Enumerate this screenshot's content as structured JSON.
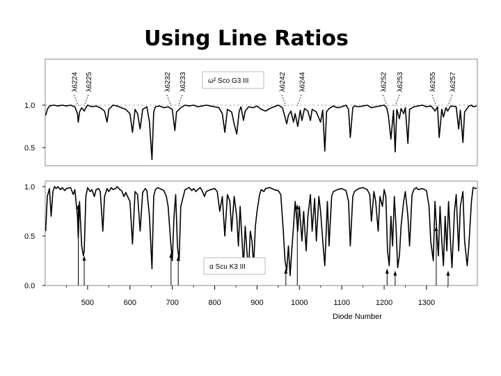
{
  "slide": {
    "title": "Using Line Ratios"
  },
  "chart_data": {
    "type": "line",
    "xlabel": "Diode Number",
    "x_ticks": [
      500,
      600,
      700,
      800,
      900,
      1000,
      1100,
      1200,
      1300
    ],
    "x_range": [
      400,
      1420
    ],
    "line_labels": [
      {
        "text": "λ6224",
        "diode": 478,
        "arrow_top": 0.82,
        "arrow_bottom": 0.0
      },
      {
        "text": "λ6225",
        "diode": 492,
        "arrow_top": 0.3,
        "arrow_bottom": 0.0
      },
      {
        "text": "λ6232",
        "diode": 697,
        "arrow_top": 0.33,
        "arrow_bottom": 0.0
      },
      {
        "text": "λ6233",
        "diode": 714,
        "arrow_top": 0.3,
        "arrow_bottom": 0.0
      },
      {
        "text": "λ6242",
        "diode": 968,
        "arrow_top": 0.17,
        "arrow_bottom": 0.0
      },
      {
        "text": "λ6244",
        "diode": 995,
        "arrow_top": 0.82,
        "arrow_bottom": 0.0
      },
      {
        "text": "λ6252",
        "diode": 1207,
        "arrow_top": 0.17,
        "arrow_bottom": 0.0
      },
      {
        "text": "λ6253",
        "diode": 1226,
        "arrow_top": 0.15,
        "arrow_bottom": 0.0
      },
      {
        "text": "λ6255",
        "diode": 1323,
        "arrow_top": 0.6,
        "arrow_bottom": 0.0
      },
      {
        "text": "λ6257",
        "diode": 1351,
        "arrow_top": 0.15,
        "arrow_bottom": 0.0
      }
    ],
    "panels": [
      {
        "star": "ω² Sco G3 III",
        "y_ticks": [
          1.0,
          0.5
        ],
        "ylim": [
          0.35,
          1.35
        ],
        "continuum": 1.0,
        "series": [
          {
            "x": [
              401,
              405,
              410,
              420,
              430,
              440,
              450,
              460,
              470,
              476,
              478,
              481,
              486,
              492,
              496,
              500,
              510,
              520,
              530,
              540,
              546,
              550,
              556,
              560,
              570,
              580,
              590,
              600,
              606,
              612,
              618,
              624,
              630,
              640,
              646,
              652,
              656,
              660,
              670,
              680,
              690,
              700,
              706,
              710,
              720,
              730,
              740,
              750,
              760,
              770,
              780,
              790,
              800,
              810,
              818,
              824,
              830,
              840,
              846,
              852,
              858,
              862,
              868,
              872,
              880,
              890,
              900,
              910,
              920,
              930,
              940,
              950,
              960,
              966,
              970,
              974,
              980,
              986,
              990,
              996,
              1002,
              1006,
              1012,
              1020,
              1026,
              1030,
              1040,
              1050,
              1055,
              1060,
              1064,
              1070,
              1080,
              1090,
              1100,
              1110,
              1116,
              1120,
              1126,
              1130,
              1140,
              1150,
              1160,
              1170,
              1180,
              1190,
              1200,
              1206,
              1210,
              1216,
              1222,
              1226,
              1230,
              1236,
              1240,
              1246,
              1250,
              1256,
              1260,
              1270,
              1280,
              1290,
              1300,
              1310,
              1316,
              1320,
              1326,
              1330,
              1336,
              1340,
              1346,
              1350,
              1356,
              1360,
              1370,
              1376,
              1380,
              1386,
              1390,
              1400,
              1406,
              1410,
              1418
            ],
            "y": [
              0.88,
              0.95,
              0.99,
              1.0,
              0.99,
              1.0,
              0.99,
              1.0,
              0.98,
              0.9,
              0.8,
              0.92,
              0.97,
              0.93,
              0.97,
              1.0,
              0.98,
              0.99,
              0.97,
              0.93,
              0.8,
              0.95,
              0.98,
              1.0,
              0.99,
              0.97,
              0.95,
              0.9,
              0.68,
              0.95,
              0.9,
              0.72,
              0.95,
              0.98,
              0.8,
              0.36,
              0.92,
              0.98,
              0.99,
              0.97,
              0.98,
              0.95,
              0.7,
              0.92,
              0.97,
              1.0,
              0.99,
              1.0,
              0.98,
              0.99,
              1.0,
              0.99,
              0.98,
              0.97,
              0.9,
              0.68,
              0.95,
              0.92,
              0.78,
              0.66,
              0.93,
              0.98,
              0.82,
              0.93,
              0.98,
              0.97,
              0.99,
              0.95,
              0.93,
              0.96,
              0.98,
              1.0,
              0.97,
              0.86,
              0.78,
              0.88,
              0.93,
              0.8,
              0.9,
              0.75,
              0.94,
              0.82,
              0.96,
              0.93,
              0.82,
              0.95,
              0.92,
              0.8,
              0.94,
              0.46,
              0.92,
              0.96,
              0.99,
              0.97,
              0.98,
              1.0,
              0.95,
              0.62,
              0.97,
              0.99,
              0.98,
              0.99,
              1.0,
              0.97,
              0.98,
              0.99,
              1.0,
              0.97,
              0.88,
              0.6,
              0.94,
              0.45,
              0.95,
              0.84,
              0.96,
              0.9,
              0.97,
              0.55,
              0.95,
              0.98,
              0.99,
              1.0,
              0.98,
              0.99,
              0.96,
              0.93,
              0.98,
              0.62,
              0.95,
              0.86,
              0.97,
              0.93,
              0.98,
              0.99,
              0.98,
              0.72,
              0.94,
              0.56,
              0.92,
              0.99,
              1.0,
              0.98,
              0.99
            ]
          }
        ]
      },
      {
        "star": "α Scu K3 III",
        "y_ticks": [
          1.0,
          0.5,
          0.0
        ],
        "ylim": [
          -0.02,
          1.05
        ],
        "continuum": null,
        "series": [
          {
            "x": [
              401,
              405,
              410,
              414,
              418,
              422,
              426,
              430,
              436,
              440,
              446,
              450,
              460,
              466,
              470,
              476,
              478,
              481,
              486,
              490,
              492,
              496,
              500,
              506,
              510,
              516,
              520,
              526,
              530,
              536,
              540,
              546,
              550,
              556,
              560,
              566,
              570,
              576,
              580,
              586,
              590,
              600,
              606,
              612,
              618,
              624,
              630,
              636,
              640,
              646,
              652,
              656,
              660,
              666,
              670,
              676,
              680,
              686,
              690,
              696,
              700,
              704,
              708,
              712,
              716,
              720,
              730,
              740,
              746,
              750,
              756,
              760,
              766,
              770,
              776,
              780,
              790,
              800,
              806,
              812,
              818,
              824,
              830,
              836,
              840,
              846,
              852,
              856,
              860,
              864,
              868,
              872,
              876,
              880,
              884,
              888,
              892,
              896,
              900,
              906,
              910,
              916,
              920,
              930,
              940,
              950,
              956,
              962,
              966,
              970,
              974,
              978,
              982,
              986,
              990,
              996,
              1000,
              1006,
              1010,
              1016,
              1020,
              1026,
              1030,
              1036,
              1040,
              1046,
              1050,
              1056,
              1060,
              1066,
              1070,
              1076,
              1080,
              1090,
              1100,
              1110,
              1116,
              1120,
              1126,
              1130,
              1136,
              1140,
              1150,
              1160,
              1166,
              1170,
              1176,
              1180,
              1186,
              1190,
              1196,
              1200,
              1204,
              1208,
              1212,
              1216,
              1220,
              1224,
              1228,
              1232,
              1236,
              1240,
              1246,
              1250,
              1256,
              1260,
              1266,
              1270,
              1276,
              1280,
              1290,
              1300,
              1306,
              1310,
              1316,
              1320,
              1324,
              1328,
              1332,
              1336,
              1340,
              1344,
              1348,
              1352,
              1356,
              1360,
              1366,
              1370,
              1376,
              1380,
              1386,
              1390,
              1396,
              1400,
              1406,
              1410,
              1418
            ],
            "y": [
              0.55,
              0.9,
              0.98,
              0.7,
              0.95,
              1.0,
              0.98,
              1.0,
              0.97,
              0.99,
              0.96,
              0.98,
              0.99,
              0.92,
              0.97,
              0.7,
              0.48,
              0.85,
              0.4,
              0.3,
              0.35,
              0.9,
              0.99,
              0.95,
              0.97,
              0.9,
              0.97,
              0.98,
              0.95,
              0.55,
              0.9,
              0.98,
              0.95,
              0.99,
              0.97,
              0.98,
              1.0,
              0.97,
              0.96,
              0.9,
              0.94,
              0.85,
              0.42,
              0.95,
              0.92,
              0.55,
              0.94,
              0.98,
              0.96,
              0.7,
              0.17,
              0.9,
              0.97,
              0.99,
              0.98,
              0.97,
              0.96,
              0.9,
              0.8,
              0.45,
              0.25,
              0.7,
              0.92,
              0.4,
              0.25,
              0.8,
              0.97,
              0.99,
              0.96,
              0.98,
              0.95,
              0.97,
              0.99,
              0.96,
              0.9,
              0.95,
              0.97,
              0.98,
              0.95,
              0.75,
              0.9,
              0.5,
              0.92,
              0.85,
              0.55,
              0.9,
              0.7,
              0.4,
              0.8,
              0.5,
              0.2,
              0.6,
              0.35,
              0.15,
              0.55,
              0.45,
              0.2,
              0.6,
              0.75,
              0.92,
              0.97,
              0.95,
              0.98,
              0.99,
              0.97,
              0.96,
              0.92,
              0.55,
              0.25,
              0.15,
              0.4,
              0.1,
              0.35,
              0.6,
              0.85,
              0.55,
              0.8,
              0.45,
              0.75,
              0.35,
              0.7,
              0.92,
              0.55,
              0.88,
              0.45,
              0.9,
              0.75,
              0.4,
              0.2,
              0.85,
              0.4,
              0.9,
              0.95,
              0.97,
              0.98,
              0.96,
              0.85,
              0.4,
              0.9,
              0.95,
              0.97,
              0.98,
              0.99,
              0.97,
              0.92,
              0.65,
              0.95,
              0.85,
              0.55,
              0.9,
              0.8,
              0.97,
              0.9,
              0.35,
              0.2,
              0.7,
              0.4,
              0.9,
              0.6,
              0.18,
              0.3,
              0.6,
              0.85,
              0.95,
              0.7,
              0.4,
              0.92,
              0.97,
              0.99,
              0.97,
              0.98,
              0.96,
              0.8,
              0.45,
              0.25,
              0.85,
              0.55,
              0.3,
              0.8,
              0.45,
              0.2,
              0.7,
              0.35,
              0.85,
              0.5,
              0.18,
              0.75,
              0.92,
              0.35,
              0.8,
              0.95,
              0.45,
              0.2,
              0.4,
              0.85,
              0.99,
              0.98
            ]
          }
        ]
      }
    ]
  }
}
